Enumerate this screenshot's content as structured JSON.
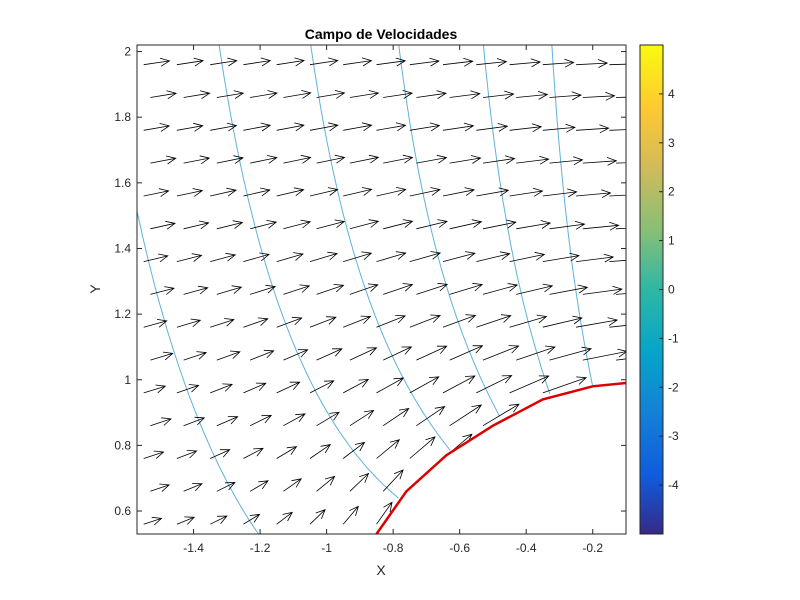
{
  "chart_data": {
    "type": "quiver",
    "title": "Campo de Velocidades",
    "xlabel": "X",
    "ylabel": "Y",
    "xlim": [
      -1.57,
      -0.1
    ],
    "ylim": [
      0.53,
      2.02
    ],
    "xticks": [
      -1.4,
      -1.2,
      -1,
      -0.8,
      -0.6,
      -0.4,
      -0.2
    ],
    "yticks": [
      0.6,
      0.8,
      1,
      1.2,
      1.4,
      1.6,
      1.8,
      2
    ],
    "colorbar": {
      "range": [
        -5,
        5
      ],
      "ticks": [
        -4,
        -3,
        -2,
        -1,
        0,
        1,
        2,
        3,
        4
      ],
      "colormap": "parula"
    },
    "field": {
      "description_model": "potential flow around circular cylinder radius 1",
      "radius": 1,
      "arrow_grid_x": [
        -1.55,
        -1.45,
        -1.35,
        -1.25,
        -1.15,
        -1.05,
        -0.95,
        -0.85,
        -0.75,
        -0.65,
        -0.55,
        -0.45,
        -0.35,
        -0.25,
        -0.15
      ],
      "arrow_grid_y": [
        0.56,
        0.66,
        0.76,
        0.86,
        0.96,
        1.06,
        1.16,
        1.26,
        1.36,
        1.46,
        1.56,
        1.66,
        1.76,
        1.86,
        1.96
      ]
    },
    "contours": {
      "color": "#5fb2d9",
      "levels": [
        -0.6,
        -0.45,
        -0.3,
        -0.15,
        0.0,
        0.15,
        0.3
      ]
    },
    "boundary": {
      "color": "#dd0000",
      "points": [
        [
          -0.85,
          0.53
        ],
        [
          -0.76,
          0.66
        ],
        [
          -0.64,
          0.77
        ],
        [
          -0.5,
          0.86
        ],
        [
          -0.35,
          0.94
        ],
        [
          -0.2,
          0.98
        ],
        [
          -0.1,
          0.99
        ]
      ]
    },
    "arrow_color": "#000000"
  }
}
